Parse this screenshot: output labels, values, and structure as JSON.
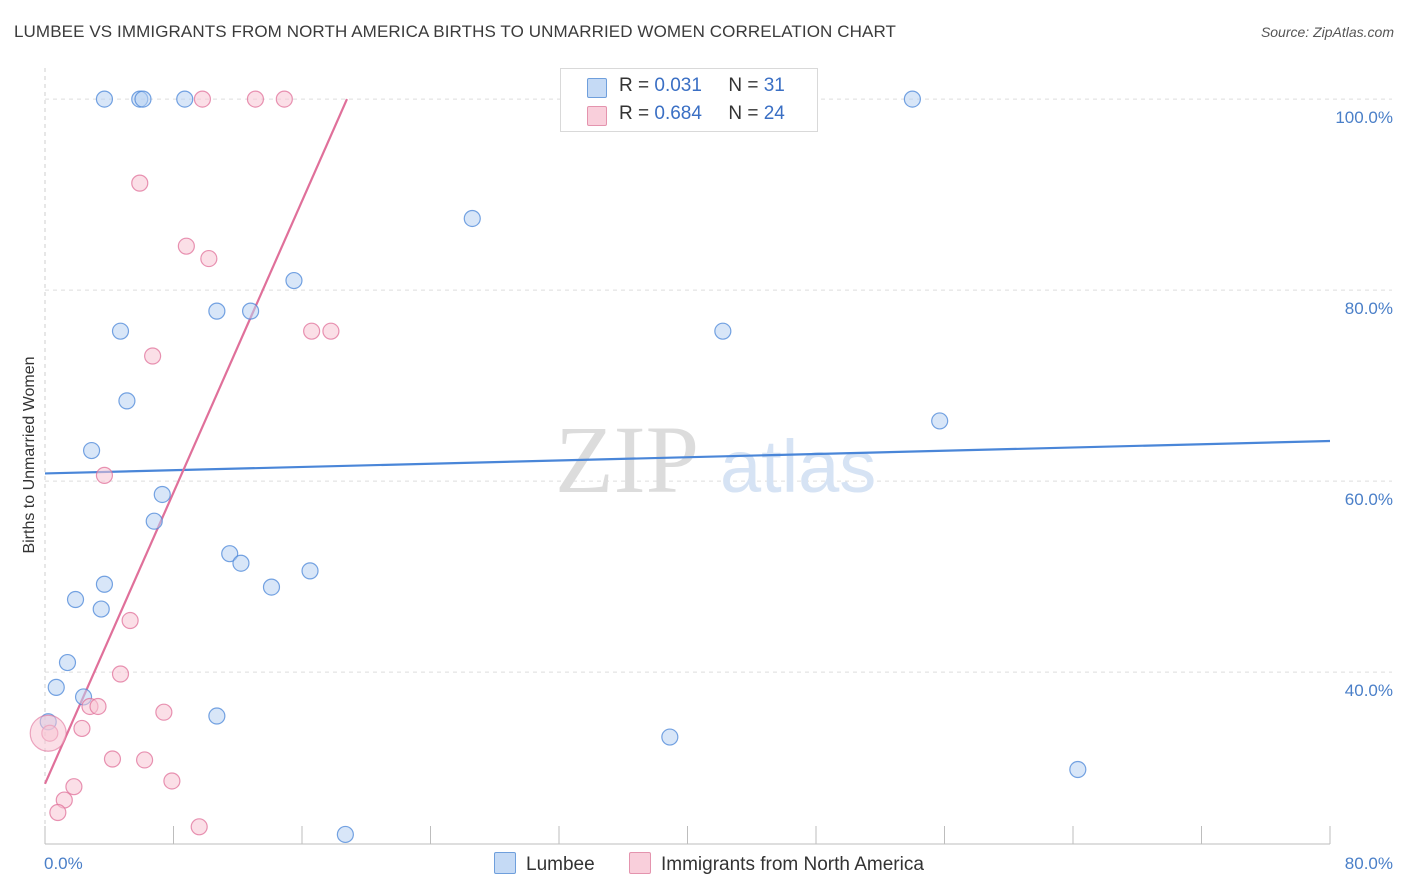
{
  "title": "LUMBEE VS IMMIGRANTS FROM NORTH AMERICA BIRTHS TO UNMARRIED WOMEN CORRELATION CHART",
  "source": "Source: ZipAtlas.com",
  "watermark": {
    "zip": "ZIP",
    "atlas": "atlas"
  },
  "legend_top": {
    "rows": [
      {
        "r_label": "R =",
        "r_value": "0.031",
        "n_label": "N =",
        "n_value": "31",
        "color": "#a8c8f0"
      },
      {
        "r_label": "R =",
        "r_value": "0.684",
        "n_label": "N =",
        "n_value": "24",
        "color": "#f5b8c8"
      }
    ]
  },
  "legend_bottom": [
    {
      "label": "Lumbee",
      "color": "#a8c8f0"
    },
    {
      "label": "Immigrants from North America",
      "color": "#f5b8c8"
    }
  ],
  "chart_data": {
    "type": "scatter",
    "ylabel": "Births to Unmarried Women",
    "xlabel": "",
    "xlim": [
      0,
      80
    ],
    "ylim": [
      22,
      102
    ],
    "x_tick_labels": [
      "0.0%",
      "80.0%"
    ],
    "y_ticks": [
      40,
      60,
      80,
      100
    ],
    "y_tick_labels": [
      "40.0%",
      "60.0%",
      "80.0%",
      "100.0%"
    ],
    "series": [
      {
        "name": "Lumbee",
        "color": "#4a86d8",
        "fill": "#b8d2f2",
        "trend": {
          "x0": 0,
          "y0": 60.8,
          "x1": 80,
          "y1": 64.2
        },
        "points": [
          [
            3.7,
            100
          ],
          [
            5.9,
            100
          ],
          [
            6.1,
            100
          ],
          [
            8.7,
            100
          ],
          [
            54.0,
            100
          ],
          [
            26.6,
            87.5
          ],
          [
            15.5,
            81.0
          ],
          [
            10.7,
            77.8
          ],
          [
            12.8,
            77.8
          ],
          [
            4.7,
            75.7
          ],
          [
            42.2,
            75.7
          ],
          [
            5.1,
            68.4
          ],
          [
            55.7,
            66.3
          ],
          [
            2.9,
            63.2
          ],
          [
            7.3,
            58.6
          ],
          [
            6.8,
            55.8
          ],
          [
            11.5,
            52.4
          ],
          [
            12.2,
            51.4
          ],
          [
            16.5,
            50.6
          ],
          [
            3.7,
            49.2
          ],
          [
            14.1,
            48.9
          ],
          [
            1.9,
            47.6
          ],
          [
            3.5,
            46.6
          ],
          [
            1.4,
            41.0
          ],
          [
            0.7,
            38.4
          ],
          [
            2.4,
            37.4
          ],
          [
            0.2,
            34.8
          ],
          [
            10.7,
            35.4
          ],
          [
            38.9,
            33.2
          ],
          [
            64.3,
            29.8
          ],
          [
            18.7,
            23.0
          ]
        ]
      },
      {
        "name": "Immigrants from North America",
        "color": "#e0709a",
        "fill": "#f7c4d3",
        "trend": {
          "x0": 0,
          "y0": 28.3,
          "x1": 18.8,
          "y1": 100
        },
        "points": [
          [
            9.8,
            100
          ],
          [
            13.1,
            100
          ],
          [
            14.9,
            100
          ],
          [
            5.9,
            91.2
          ],
          [
            8.8,
            84.6
          ],
          [
            10.2,
            83.3
          ],
          [
            16.6,
            75.7
          ],
          [
            17.8,
            75.7
          ],
          [
            6.7,
            73.1
          ],
          [
            3.7,
            60.6
          ],
          [
            5.3,
            45.4
          ],
          [
            4.7,
            39.8
          ],
          [
            2.8,
            36.4
          ],
          [
            3.3,
            36.4
          ],
          [
            7.4,
            35.8
          ],
          [
            2.3,
            34.1
          ],
          [
            0.3,
            33.6
          ],
          [
            4.2,
            30.9
          ],
          [
            6.2,
            30.8
          ],
          [
            7.9,
            28.6
          ],
          [
            1.8,
            28.0
          ],
          [
            1.2,
            26.6
          ],
          [
            0.8,
            25.3
          ],
          [
            9.6,
            23.8
          ]
        ]
      }
    ]
  }
}
